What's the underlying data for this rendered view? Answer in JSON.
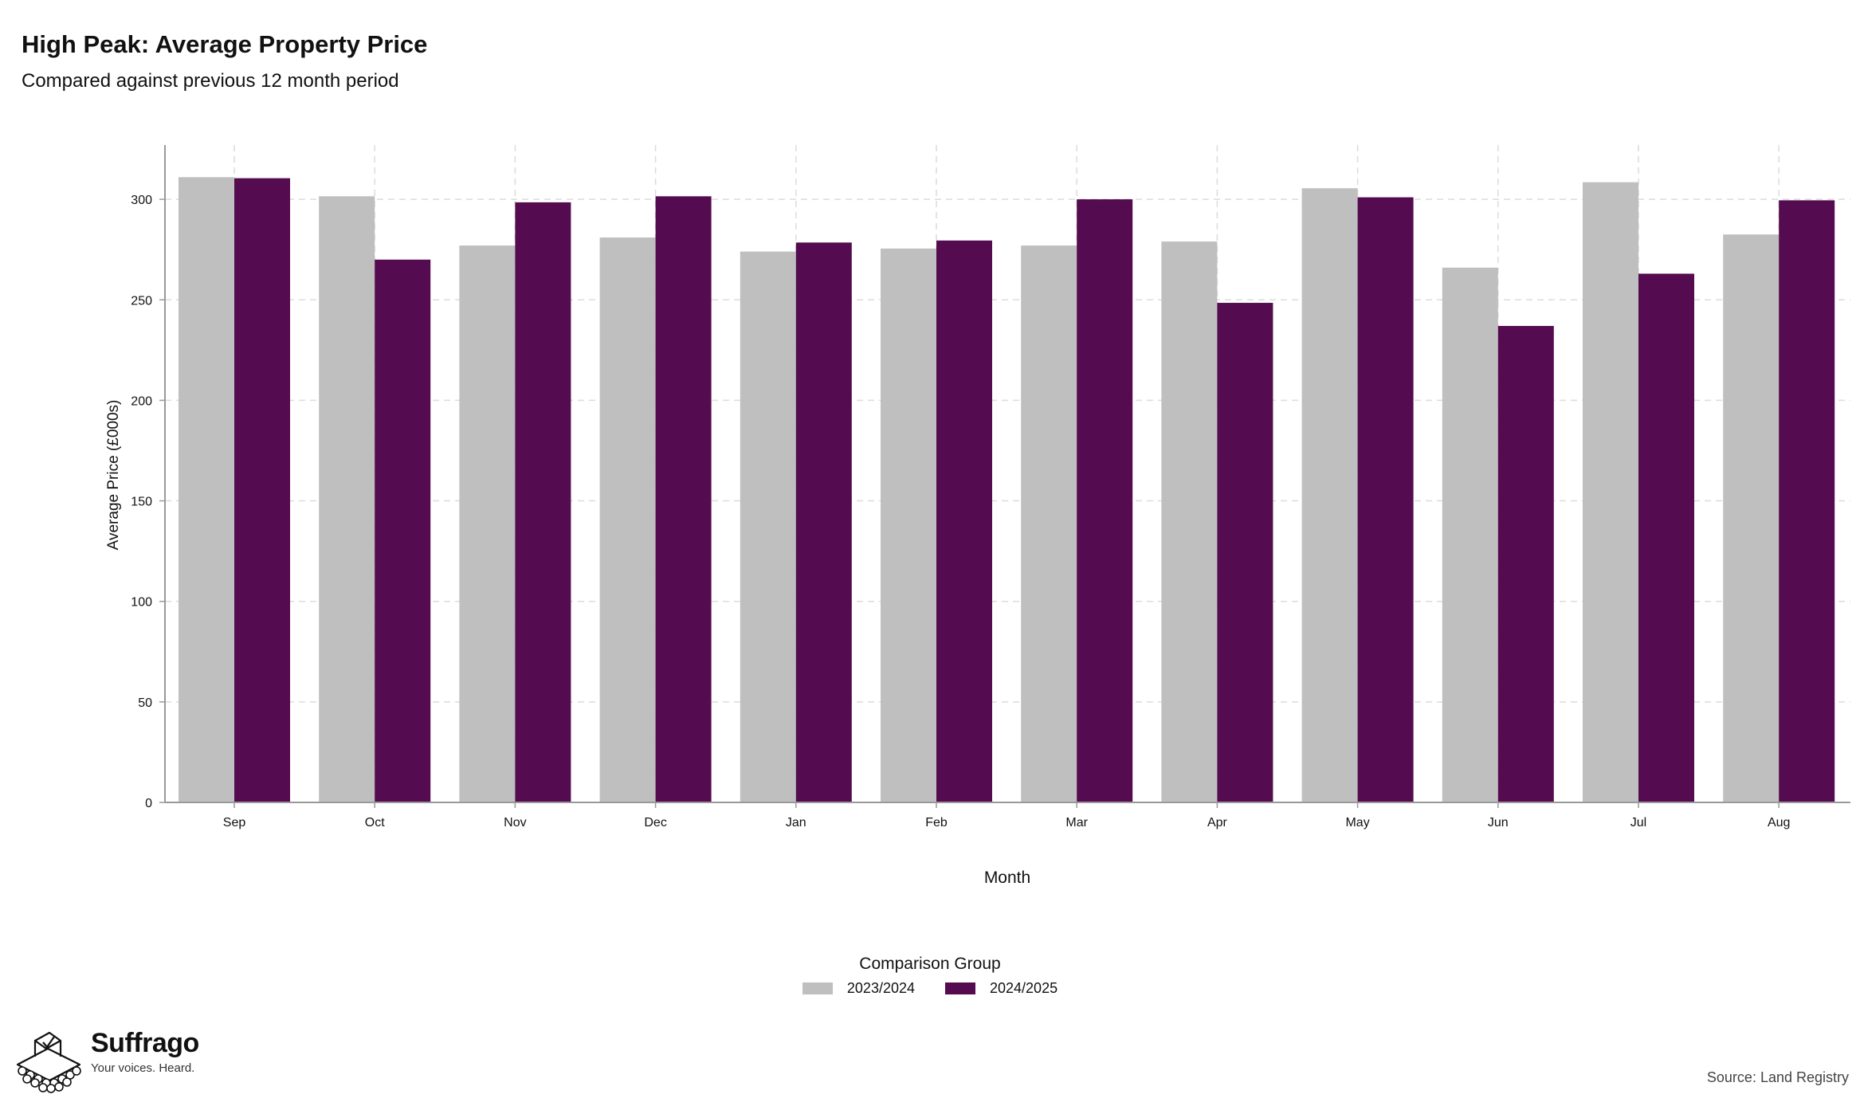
{
  "title": "High Peak: Average Property Price",
  "subtitle": "Compared against previous 12 month period",
  "legend": {
    "title": "Comparison Group",
    "items": [
      {
        "label": "2023/2024",
        "color": "#bfbfbf"
      },
      {
        "label": "2024/2025",
        "color": "#550b4f"
      }
    ]
  },
  "branding": {
    "name": "Suffrago",
    "tagline": "Your voices. Heard."
  },
  "source": "Source: Land Registry",
  "chart_data": {
    "type": "bar",
    "xlabel": "Month",
    "ylabel": "Average Price (£000s)",
    "ylim": [
      0,
      327
    ],
    "yticks": [
      0,
      50,
      100,
      150,
      200,
      250,
      300
    ],
    "grid": true,
    "legend_position": "bottom",
    "categories": [
      "Sep",
      "Oct",
      "Nov",
      "Dec",
      "Jan",
      "Feb",
      "Mar",
      "Apr",
      "May",
      "Jun",
      "Jul",
      "Aug"
    ],
    "series": [
      {
        "name": "2023/2024",
        "color": "#bfbfbf",
        "values": [
          311,
          301.5,
          277,
          281,
          274,
          275.5,
          277,
          279,
          305.5,
          266,
          308.5,
          282.5
        ]
      },
      {
        "name": "2024/2025",
        "color": "#550b4f",
        "values": [
          310.5,
          270,
          298.5,
          301.5,
          278.5,
          279.5,
          300,
          248.5,
          301,
          237,
          263,
          299.5
        ]
      }
    ]
  }
}
